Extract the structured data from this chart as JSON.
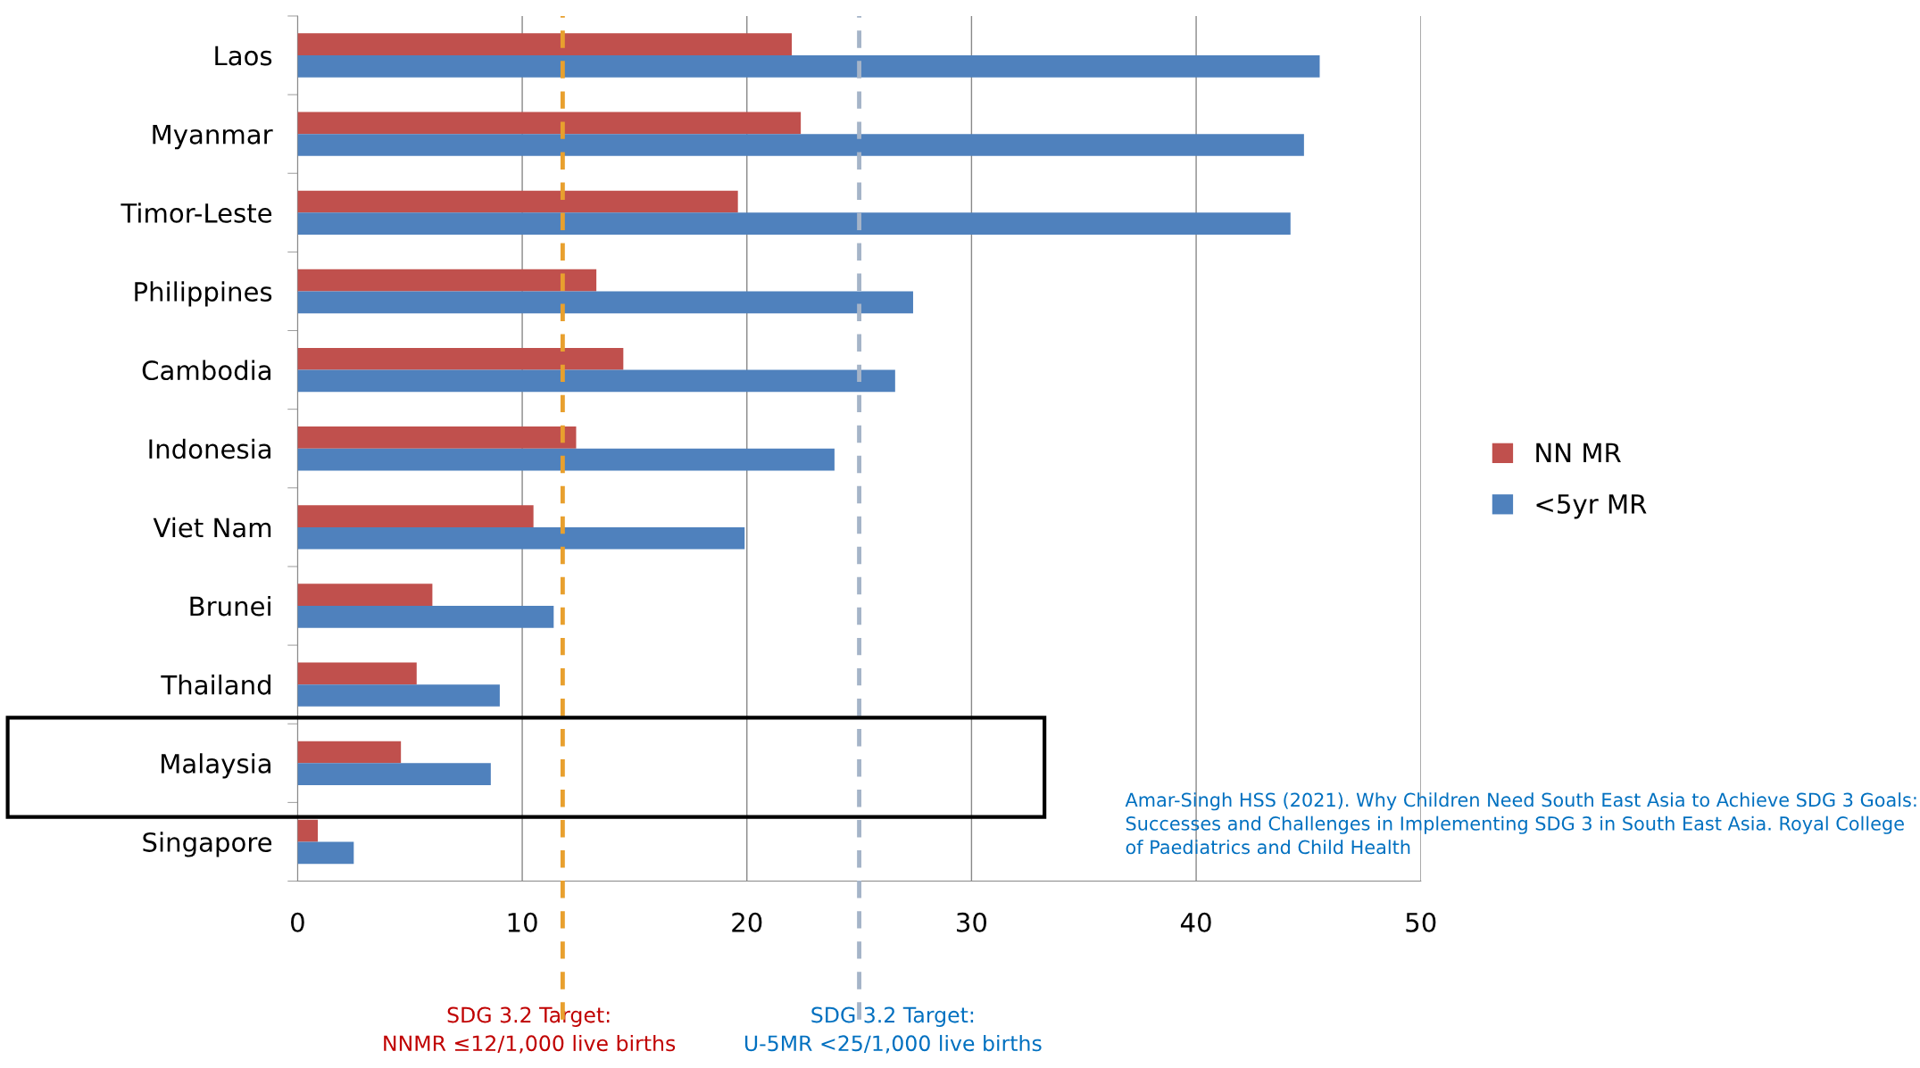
{
  "chart_data": {
    "type": "bar",
    "orientation": "horizontal",
    "categories": [
      "Laos",
      "Myanmar",
      "Timor-Leste",
      "Philippines",
      "Cambodia",
      "Indonesia",
      "Viet Nam",
      "Brunei",
      "Thailand",
      "Malaysia",
      "Singapore"
    ],
    "series": [
      {
        "name": "NN MR",
        "color": "#c0504d",
        "values": [
          22.0,
          22.4,
          19.6,
          13.3,
          14.5,
          12.4,
          10.5,
          6.0,
          5.3,
          4.6,
          0.9
        ]
      },
      {
        "name": "<5yr MR",
        "color": "#4f81bd",
        "values": [
          45.5,
          44.8,
          44.2,
          27.4,
          26.6,
          23.9,
          19.9,
          11.4,
          9.0,
          8.6,
          2.5
        ]
      }
    ],
    "xlim": [
      0,
      50
    ],
    "xticks": [
      0,
      10,
      20,
      30,
      40,
      50
    ],
    "grid": "x",
    "legend": "right",
    "ref_lines": [
      {
        "axis": "x",
        "value": 11.8,
        "label": "SDG 3.2 Target:\nNNMR ≤12/1,000 live births",
        "color": "#e8a02e",
        "line_style": "dashed"
      },
      {
        "axis": "x",
        "value": 25,
        "label": "SDG 3.2 Target:\nU-5MR <25/1,000 live births",
        "color": "#a5b4c8",
        "line_style": "dashed"
      }
    ],
    "annotations": [
      "Amar-Singh HSS (2021). Why Children Need South East Asia to Achieve SDG 3 Goals: Successes and Challenges in Implementing SDG 3 in South East Asia. Royal College of Paediatrics and Child Health"
    ]
  }
}
